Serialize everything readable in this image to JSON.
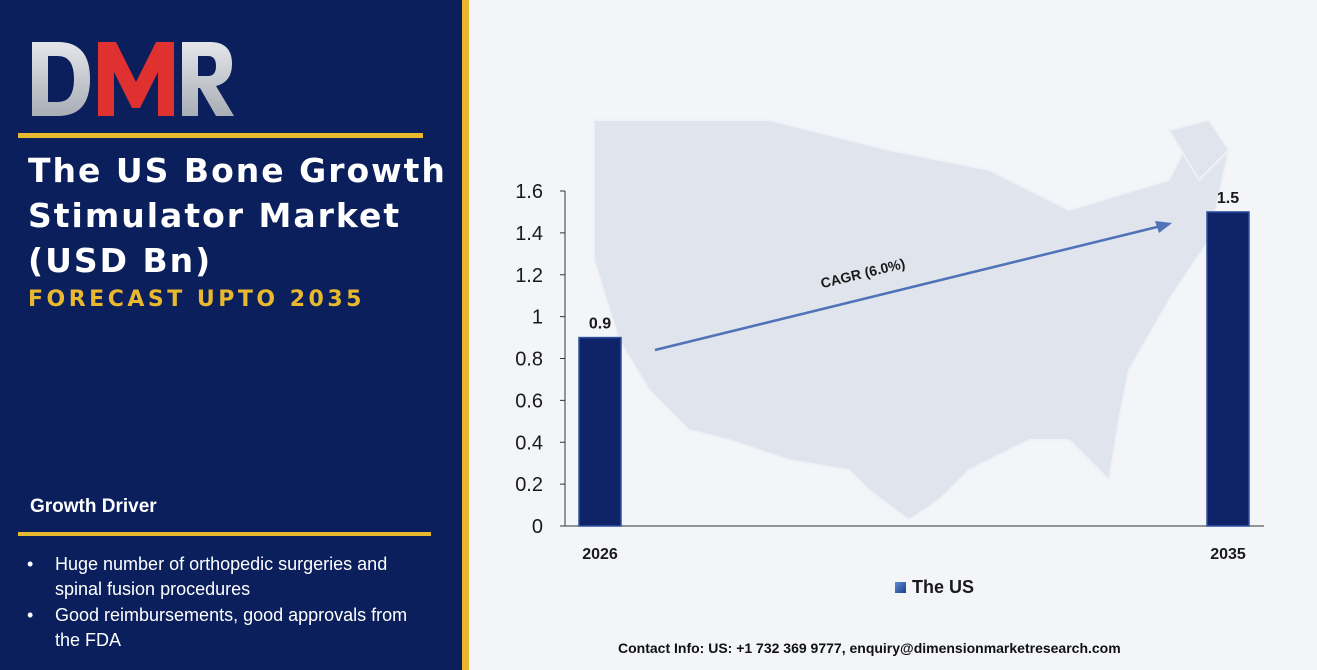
{
  "brand": {
    "logo_text": "DMR",
    "colors": {
      "navy": "#0b1f5c",
      "gold": "#e8b92e",
      "red": "#e03131",
      "silver": "#c7c9cf"
    }
  },
  "header": {
    "title": "The US Bone Growth Stimulator Market (USD Bn)",
    "subtitle": "FORECAST UPTO 2035"
  },
  "growth_driver": {
    "title": "Growth Driver",
    "items": [
      "Huge number of orthopedic surgeries and spinal fusion procedures",
      "Good reimbursements, good approvals from the FDA"
    ]
  },
  "contact": "Contact Info: US: +1 732 369 9777, enquiry@dimensionmarketresearch.com",
  "chart_data": {
    "type": "bar",
    "categories": [
      "2026",
      "2035"
    ],
    "series": [
      {
        "name": "The US",
        "values": [
          0.9,
          1.5
        ]
      }
    ],
    "data_labels": [
      "0.9",
      "1.5"
    ],
    "y_ticks": [
      "0",
      "0.2",
      "0.4",
      "0.6",
      "0.8",
      "1",
      "1.2",
      "1.4",
      "1.6"
    ],
    "ylim": [
      0,
      1.6
    ],
    "annotation": "CAGR (6.0%)",
    "legend_position": "bottom",
    "grid": false,
    "bar_color": "#0f2368",
    "background_image": "us-map"
  }
}
